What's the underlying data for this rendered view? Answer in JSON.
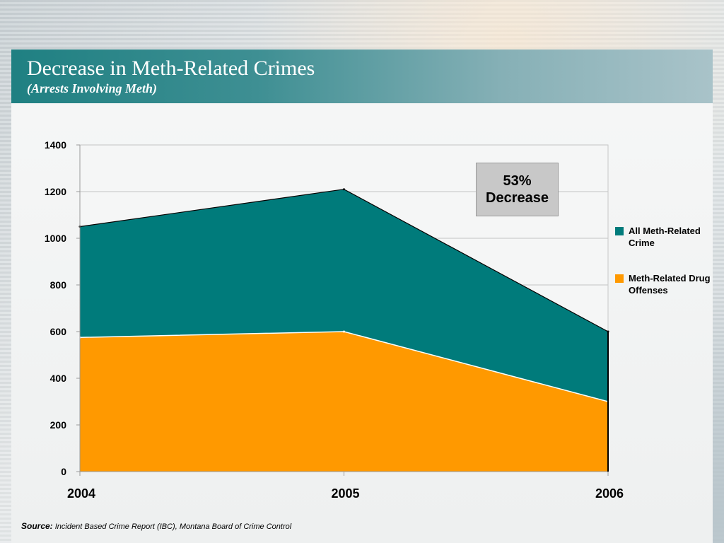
{
  "slide": {
    "title": "Decrease in Meth-Related Crimes",
    "subtitle": "(Arrests Involving Meth)",
    "callout_line1": "53%",
    "callout_line2": "Decrease",
    "source_label": "Source:",
    "source_text": "Incident Based Crime Report (IBC), Montana Board of Crime Control"
  },
  "chart_data": {
    "type": "area",
    "stacked": false,
    "title": "Decrease in Meth-Related Crimes",
    "subtitle": "(Arrests Involving Meth)",
    "categories": [
      "2004",
      "2005",
      "2006"
    ],
    "ylim": [
      0,
      1400
    ],
    "yticks": [
      0,
      200,
      400,
      600,
      800,
      1000,
      1200,
      1400
    ],
    "grid": true,
    "legend_position": "right",
    "series": [
      {
        "name": "All Meth-Related Crime",
        "color": "#007b7b",
        "values": [
          1050,
          1210,
          600
        ]
      },
      {
        "name": "Meth-Related Drug Offenses",
        "color": "#ff9900",
        "values": [
          575,
          600,
          300
        ]
      }
    ]
  }
}
